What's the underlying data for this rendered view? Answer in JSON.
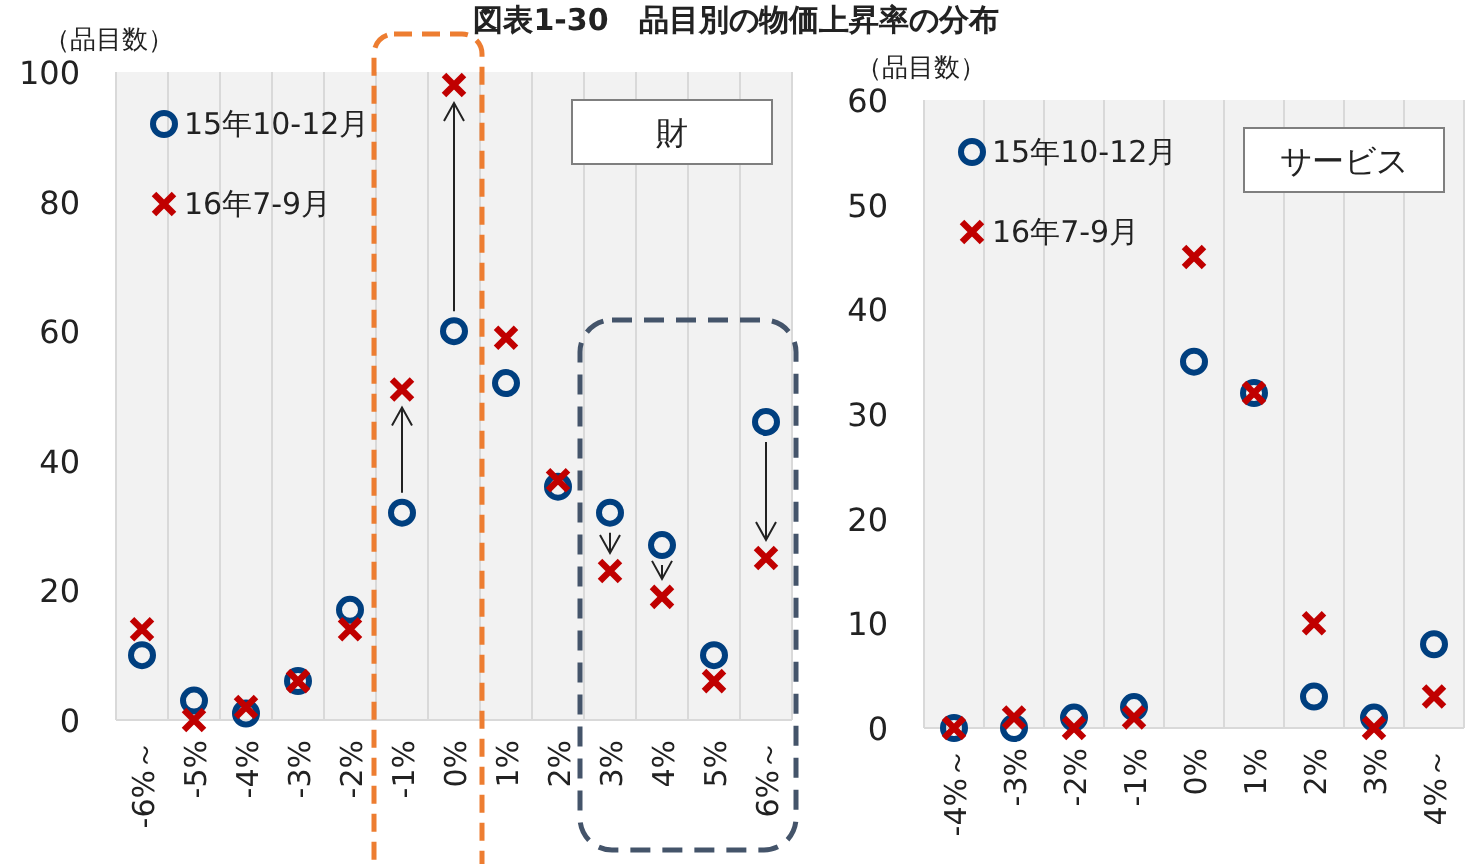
{
  "chart_data": [
    {
      "type": "scatter",
      "title": "図表1-30　品目別の物価上昇率の分布",
      "ylabel": "（品目数）",
      "categories": [
        "-6%～",
        "-5%",
        "-4%",
        "-3%",
        "-2%",
        "-1%",
        "0%",
        "1%",
        "2%",
        "3%",
        "4%",
        "5%",
        "6%～"
      ],
      "series": [
        {
          "name": "15年10-12月",
          "color": "#003f7f",
          "marker": "circle",
          "values": [
            10,
            3,
            1,
            6,
            17,
            32,
            60,
            52,
            36,
            32,
            27,
            10,
            46
          ]
        },
        {
          "name": "16年7-9月",
          "color": "#c00000",
          "marker": "cross",
          "values": [
            14,
            0,
            2,
            6,
            14,
            51,
            98,
            59,
            37,
            23,
            19,
            6,
            25
          ]
        }
      ],
      "ylim": [
        0,
        100
      ],
      "yticks": [
        0,
        20,
        40,
        60,
        80,
        100
      ],
      "grid": "x",
      "legend": "top left",
      "annotations": [
        "財"
      ]
    },
    {
      "type": "scatter",
      "ylabel": "（品目数）",
      "categories": [
        "-4%～",
        "-3%",
        "-2%",
        "-1%",
        "0%",
        "1%",
        "2%",
        "3%",
        "4%～"
      ],
      "series": [
        {
          "name": "15年10-12月",
          "color": "#003f7f",
          "marker": "circle",
          "values": [
            0,
            0,
            1,
            2,
            35,
            32,
            3,
            1,
            8
          ]
        },
        {
          "name": "16年7-9月",
          "color": "#c00000",
          "marker": "cross",
          "values": [
            0,
            1,
            0,
            1,
            45,
            32,
            10,
            0,
            3
          ]
        }
      ],
      "ylim": [
        0,
        60
      ],
      "yticks": [
        0,
        10,
        20,
        30,
        40,
        50,
        60
      ],
      "grid": "x",
      "legend": "top left",
      "annotations": [
        "サービス"
      ]
    }
  ]
}
